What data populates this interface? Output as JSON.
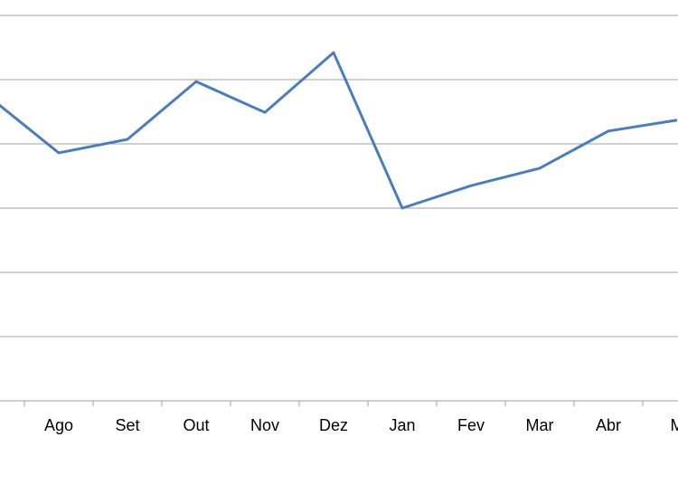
{
  "chart_data": {
    "type": "line",
    "categories": [
      null,
      "Ago",
      "Set",
      "Out",
      "Nov",
      "Dez",
      "Jan",
      "Fev",
      "Mar",
      "Abr",
      "M"
    ],
    "series": [
      {
        "color": "#4a7ebb",
        "values": [
          4.72,
          3.86,
          4.07,
          4.97,
          4.49,
          5.42,
          3.0,
          3.35,
          3.62,
          4.2,
          4.37
        ]
      }
    ],
    "ylim": [
      0,
      6
    ],
    "yticks": [
      0,
      1,
      2,
      3,
      4,
      5,
      6
    ],
    "grid": true
  }
}
